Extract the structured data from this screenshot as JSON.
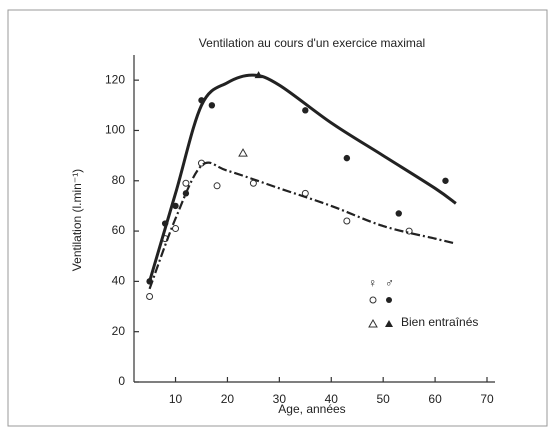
{
  "chart_data": {
    "type": "scatter",
    "title": "Ventilation au cours d'un exercice maximal",
    "x_label": "Age, années",
    "y_label": "Ventilation  (l.min⁻¹)",
    "xlim": [
      2,
      70
    ],
    "xticks": [
      10,
      20,
      30,
      40,
      50,
      60,
      70
    ],
    "ylim": [
      0,
      130
    ],
    "yticks": [
      0,
      20,
      40,
      60,
      80,
      100,
      120
    ],
    "legend": {
      "female": "♀",
      "male": "♂",
      "trained": "Bien entraînés"
    },
    "series": [
      {
        "marker": "open-circle",
        "color": "#333",
        "x": [
          5,
          8,
          10,
          12,
          15,
          18,
          25,
          35,
          43,
          55
        ],
        "values": [
          34,
          57,
          61,
          79,
          87,
          78,
          79,
          75,
          64,
          60
        ]
      },
      {
        "marker": "filled-circle",
        "color": "#222",
        "x": [
          5,
          8,
          10,
          12,
          15,
          17,
          35,
          43,
          53,
          62
        ],
        "values": [
          40,
          63,
          70,
          75,
          112,
          110,
          108,
          89,
          67,
          80
        ]
      },
      {
        "marker": "open-triangle",
        "color": "#333",
        "x": [
          23
        ],
        "values": [
          91
        ]
      },
      {
        "marker": "filled-triangle",
        "color": "#222",
        "x": [
          26
        ],
        "values": [
          122
        ]
      },
      {
        "marker": "solid-line",
        "color": "#222",
        "x": [
          5,
          10,
          15,
          20,
          25,
          30,
          40,
          50,
          60,
          64
        ],
        "values": [
          40,
          75,
          110,
          119,
          122,
          118,
          103,
          90,
          77,
          71
        ]
      },
      {
        "marker": "dashdot-line",
        "color": "#222",
        "x": [
          5,
          10,
          15,
          20,
          30,
          40,
          50,
          60,
          64
        ],
        "values": [
          37,
          65,
          86,
          84,
          77,
          70,
          62,
          57,
          55
        ]
      }
    ]
  }
}
